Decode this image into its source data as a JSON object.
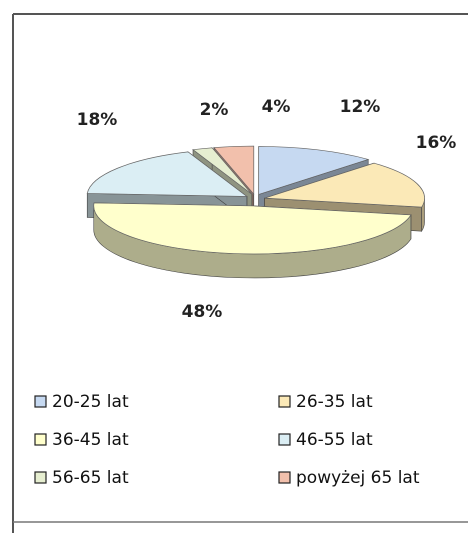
{
  "chart_data": {
    "type": "pie",
    "categories": [
      "20-25 lat",
      "26-35 lat",
      "36-45 lat",
      "46-55 lat",
      "56-65 lat",
      "powyżej 65 lat"
    ],
    "values": [
      12,
      16,
      48,
      18,
      2,
      4
    ],
    "value_labels": [
      "12%",
      "16%",
      "48%",
      "18%",
      "2%",
      "4%"
    ],
    "colors": [
      "#c6d9f1",
      "#fbe9b7",
      "#ffffcc",
      "#dbeef4",
      "#e6eed0",
      "#f2c0ac"
    ]
  }
}
